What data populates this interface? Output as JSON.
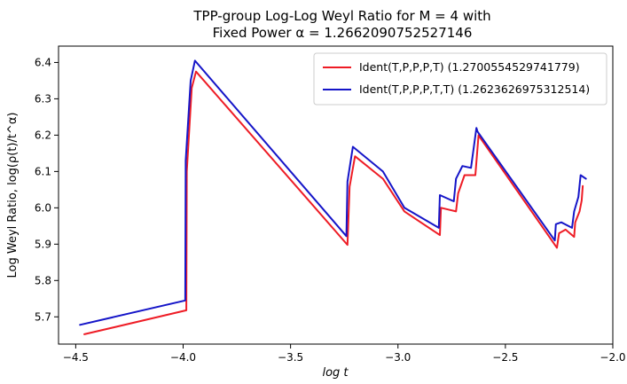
{
  "chart_data": {
    "type": "line",
    "title": "TPP-group Log-Log Weyl Ratio for M = 4 with",
    "subtitle": "Fixed Power α = 1.2662090752527146",
    "xlabel": "log t",
    "ylabel": "Log Weyl Ratio, log(ρ(t)/t^α)",
    "xlim": [
      -4.58,
      -2.0
    ],
    "ylim": [
      5.625,
      6.445
    ],
    "x_ticks": [
      -4.5,
      -4.0,
      -3.5,
      -3.0,
      -2.5,
      -2.0
    ],
    "x_tick_labels": [
      "−4.5",
      "−4.0",
      "−3.5",
      "−3.0",
      "−2.5",
      "−2.0"
    ],
    "y_ticks": [
      5.7,
      5.8,
      5.9,
      6.0,
      6.1,
      6.2,
      6.3,
      6.4
    ],
    "y_tick_labels": [
      "5.7",
      "5.8",
      "5.9",
      "6.0",
      "6.1",
      "6.2",
      "6.3",
      "6.4"
    ],
    "grid": false,
    "legend_position": "top-right",
    "series": [
      {
        "name": "Ident(T,P,P,P,T) (1.2700554529741779)",
        "color": "#ee1c25",
        "x": [
          -4.46,
          -3.985,
          -3.983,
          -3.96,
          -3.94,
          -3.235,
          -3.225,
          -3.2,
          -3.07,
          -2.97,
          -2.805,
          -2.8,
          -2.73,
          -2.72,
          -2.69,
          -2.64,
          -2.625,
          -2.62,
          -2.26,
          -2.25,
          -2.22,
          -2.18,
          -2.175,
          -2.155,
          -2.145,
          -2.14
        ],
        "y": [
          5.652,
          5.718,
          6.1,
          6.33,
          6.375,
          5.898,
          6.058,
          6.142,
          6.08,
          5.99,
          5.925,
          6.0,
          5.99,
          6.04,
          6.09,
          6.09,
          6.2,
          6.195,
          5.89,
          5.93,
          5.94,
          5.92,
          5.96,
          5.99,
          6.02,
          6.06
        ]
      },
      {
        "name": "Ident(T,P,P,P,T,T) (1.2623626975312514)",
        "color": "#1515c8",
        "x": [
          -4.48,
          -3.99,
          -3.988,
          -3.965,
          -3.945,
          -3.24,
          -3.235,
          -3.21,
          -3.07,
          -2.97,
          -2.81,
          -2.805,
          -2.74,
          -2.73,
          -2.7,
          -2.66,
          -2.635,
          -2.63,
          -2.27,
          -2.265,
          -2.24,
          -2.19,
          -2.18,
          -2.16,
          -2.15,
          -2.125
        ],
        "y": [
          5.678,
          5.745,
          6.13,
          6.35,
          6.405,
          5.922,
          6.072,
          6.168,
          6.1,
          6.0,
          5.945,
          6.035,
          6.018,
          6.08,
          6.115,
          6.11,
          6.22,
          6.21,
          5.91,
          5.955,
          5.96,
          5.945,
          5.99,
          6.03,
          6.09,
          6.08
        ]
      }
    ]
  }
}
